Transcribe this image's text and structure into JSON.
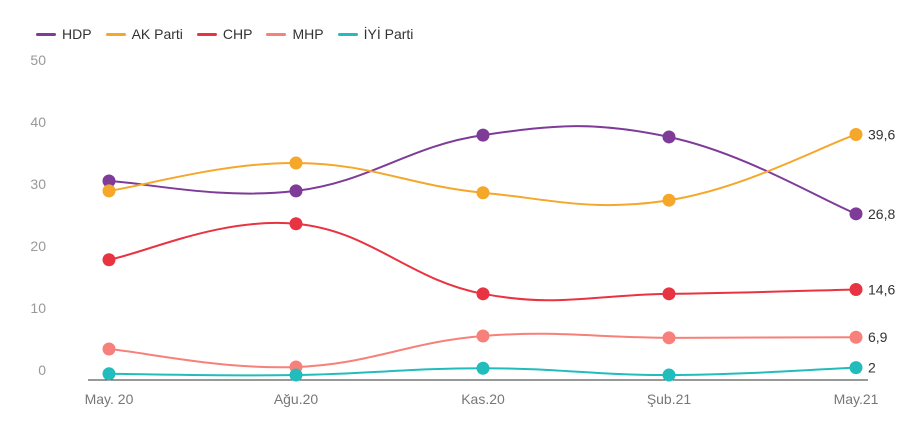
{
  "chart_data": {
    "type": "line",
    "title": "",
    "xlabel": "",
    "ylabel": "",
    "categories": [
      "May. 20",
      "Ağu.20",
      "Kas.20",
      "Şub.21",
      "May.21"
    ],
    "ylim": [
      0,
      50
    ],
    "yticks": [
      0,
      10,
      20,
      30,
      40,
      50
    ],
    "grid": false,
    "legend": "top-left",
    "series": [
      {
        "name": "HDP",
        "color": "#7e3b98",
        "values": [
          32.1,
          30.5,
          39.5,
          39.2,
          26.8
        ],
        "end_label": "26,8"
      },
      {
        "name": "AK Parti",
        "color": "#f5a72a",
        "values": [
          30.5,
          35.0,
          30.2,
          29.0,
          39.6
        ],
        "end_label": "39,6"
      },
      {
        "name": "CHP",
        "color": "#e83442",
        "values": [
          19.4,
          25.2,
          13.9,
          13.9,
          14.6
        ],
        "end_label": "14,6"
      },
      {
        "name": "MHP",
        "color": "#f7807a",
        "values": [
          5.0,
          2.1,
          7.1,
          6.8,
          6.9
        ],
        "end_label": "6,9"
      },
      {
        "name": "İYİ Parti",
        "color": "#22bcbc",
        "values": [
          1.0,
          0.8,
          1.9,
          0.8,
          2.0
        ],
        "end_label": "2"
      }
    ]
  }
}
